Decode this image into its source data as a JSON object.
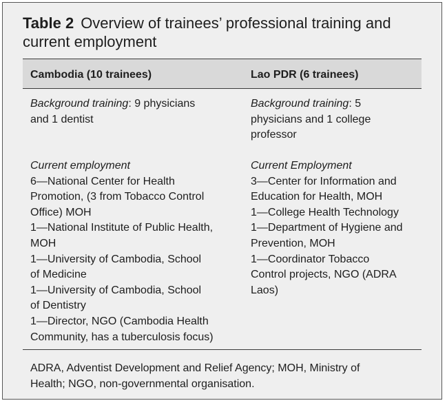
{
  "table": {
    "label": "Table 2",
    "caption_lines": [
      "Overview of trainees’ professional training and",
      "current employment"
    ],
    "columns": [
      "Cambodia (10 trainees)",
      "Lao PDR (6 trainees)"
    ]
  },
  "cambodia": {
    "background_label": "Background training",
    "background_lines": [
      ": 9 physicians",
      "and 1 dentist"
    ],
    "employment_label": "Current employment",
    "employment_lines": [
      "6—National Center for Health",
      "Promotion, (3 from Tobacco Control",
      "Office) MOH",
      "1—National Institute of Public Health,",
      "MOH",
      "1—University of Cambodia, School",
      "of Medicine",
      "1—University of Cambodia, School",
      "of Dentistry",
      "1—Director, NGO (Cambodia Health",
      "Community, has a tuberculosis focus)"
    ]
  },
  "lao": {
    "background_label": "Background training",
    "background_lines": [
      ": 5",
      "physicians and 1 college",
      "professor"
    ],
    "employment_label": "Current Employment",
    "employment_lines": [
      "3—Center for Information and",
      "Education for Health, MOH",
      "1—College Health Technology",
      "1—Department of Hygiene and",
      "Prevention, MOH",
      "1—Coordinator Tobacco",
      "Control projects, NGO (ADRA",
      "Laos)"
    ]
  },
  "footnote_lines": [
    "ADRA, Adventist Development and Relief Agency; MOH, Ministry of",
    "Health; NGO, non-governmental organisation."
  ]
}
